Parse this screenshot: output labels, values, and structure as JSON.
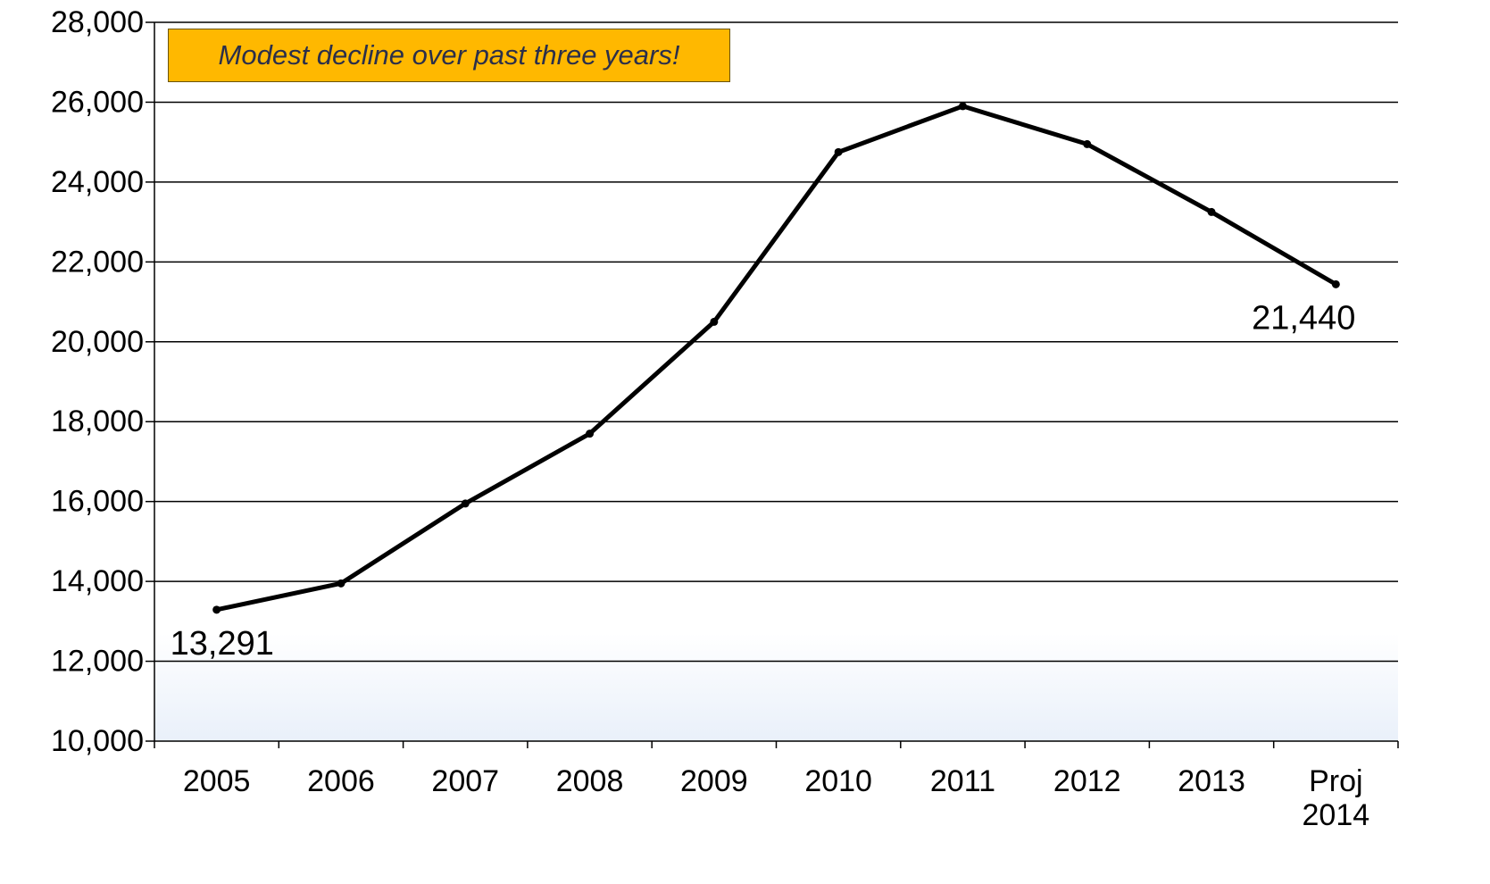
{
  "chart_data": {
    "type": "line",
    "title": "",
    "xlabel": "",
    "ylabel": "",
    "categories": [
      "2005",
      "2006",
      "2007",
      "2008",
      "2009",
      "2010",
      "2011",
      "2012",
      "2013",
      "Proj 2014"
    ],
    "series": [
      {
        "values": [
          13291,
          13950,
          15950,
          17700,
          20500,
          24750,
          25900,
          24950,
          23250,
          21440
        ]
      }
    ],
    "ylim": [
      10000,
      28000
    ],
    "y_ticks": [
      "10,000",
      "12,000",
      "14,000",
      "16,000",
      "18,000",
      "20,000",
      "22,000",
      "24,000",
      "26,000",
      "28,000"
    ],
    "data_labels": [
      {
        "index": 0,
        "text": "13,291",
        "position": "below"
      },
      {
        "index": 9,
        "text": "21,440",
        "position": "below"
      }
    ],
    "annotation": {
      "text": "Modest decline over past three years!",
      "background": "#ffb800"
    },
    "grid": true,
    "legend": "none",
    "colors": {
      "line": "#000000",
      "grid": "#000000",
      "plot_bottom_tint": "#eef3fb"
    }
  }
}
